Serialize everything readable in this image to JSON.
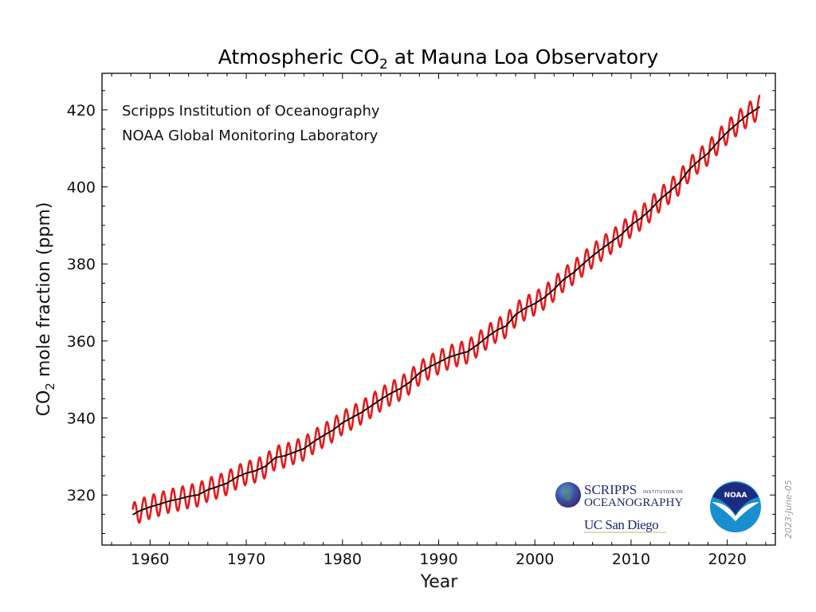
{
  "chart_data": {
    "type": "line",
    "title": {
      "main": "Atmospheric CO",
      "sub": "2",
      "rest": " at Mauna Loa Observatory"
    },
    "xlabel": "Year",
    "ylabel": {
      "main": "CO",
      "sub": "2",
      "rest": " mole fraction (ppm)"
    },
    "xlim": [
      1955,
      2025
    ],
    "ylim": [
      307,
      429.5
    ],
    "xticks": [
      "1960",
      "1970",
      "1980",
      "1990",
      "2000",
      "2010",
      "2020"
    ],
    "yticks": [
      "320",
      "340",
      "360",
      "380",
      "400",
      "420"
    ],
    "grid": false,
    "annotations": [
      "Scripps Institution of Oceanography",
      "NOAA Global Monitoring Laboratory"
    ],
    "date_stamp": "2023-June-05",
    "colors": {
      "monthly": "#e41a1c",
      "trend": "#000000"
    },
    "seasonal_amplitude_ppm": 6,
    "series": [
      {
        "kind": "monthly mean (seasonal cycle)",
        "color": "#e41a1c"
      },
      {
        "kind": "seasonally corrected trend",
        "color": "#000000",
        "x": [
          1958.2,
          1959,
          1960,
          1961,
          1962,
          1963,
          1964,
          1965,
          1966,
          1967,
          1968,
          1969,
          1970,
          1971,
          1972,
          1973,
          1974,
          1975,
          1976,
          1977,
          1978,
          1979,
          1980,
          1981,
          1982,
          1983,
          1984,
          1985,
          1986,
          1987,
          1988,
          1989,
          1990,
          1991,
          1992,
          1993,
          1994,
          1995,
          1996,
          1997,
          1998,
          1999,
          2000,
          2001,
          2002,
          2003,
          2004,
          2005,
          2006,
          2007,
          2008,
          2009,
          2010,
          2011,
          2012,
          2013,
          2014,
          2015,
          2016,
          2017,
          2018,
          2019,
          2020,
          2021,
          2022,
          2023.4
        ],
        "y": [
          314.9,
          315.98,
          316.91,
          317.64,
          318.45,
          318.99,
          319.62,
          320.04,
          321.37,
          322.18,
          323.05,
          324.62,
          325.68,
          326.32,
          327.46,
          329.68,
          330.19,
          331.13,
          332.03,
          333.84,
          335.41,
          336.84,
          338.76,
          340.12,
          341.48,
          343.15,
          344.87,
          346.35,
          347.61,
          349.31,
          351.69,
          353.2,
          354.45,
          355.7,
          356.54,
          357.21,
          358.96,
          360.97,
          362.74,
          363.88,
          366.84,
          368.54,
          369.71,
          371.32,
          373.45,
          375.98,
          377.7,
          379.98,
          382.09,
          384.02,
          385.83,
          387.64,
          390.1,
          391.85,
          394.06,
          396.74,
          398.81,
          401.01,
          404.41,
          406.76,
          408.72,
          411.65,
          414.21,
          416.41,
          418.53,
          420.8
        ]
      }
    ]
  },
  "logos": {
    "scripps_line1": "SCRIPPS",
    "scripps_small": "INSTITUTION OF",
    "scripps_line2": "OCEANOGRAPHY",
    "ucsd": "UC San Diego",
    "noaa": "NOAA"
  }
}
